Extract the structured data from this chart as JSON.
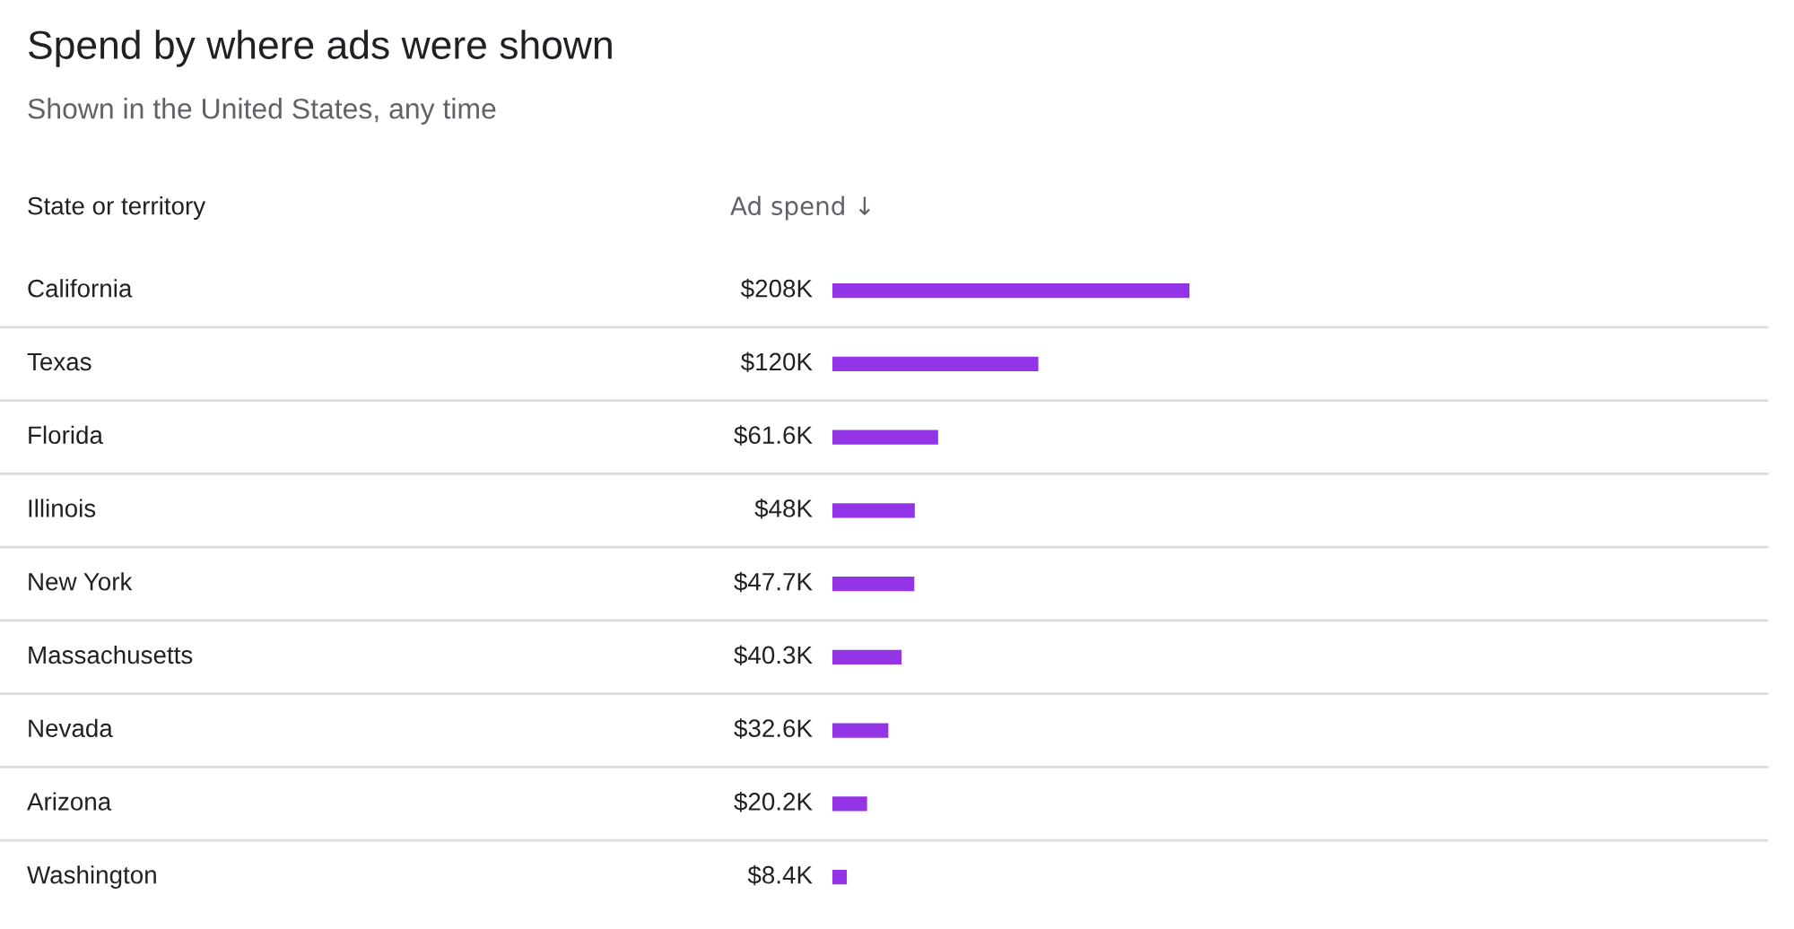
{
  "chart_data": {
    "type": "bar",
    "orientation": "horizontal",
    "title": "Spend by where ads were shown",
    "subtitle": "Shown in the United States, any time",
    "ylabel": "State or territory",
    "xlabel": "Ad spend ↓",
    "categories": [
      "California",
      "Texas",
      "Florida",
      "Illinois",
      "New York",
      "Massachusetts",
      "Nevada",
      "Arizona",
      "Washington"
    ],
    "values": [
      208,
      120,
      61.6,
      48,
      47.7,
      40.3,
      32.6,
      20.2,
      8.4
    ],
    "color": "#9334e6",
    "value_labels": [
      "$208K",
      "$120K",
      "$61.6K",
      "$48K",
      "$47.7K",
      "$40.3K",
      "$32.6K",
      "$20.2K",
      "$8.4K"
    ]
  }
}
